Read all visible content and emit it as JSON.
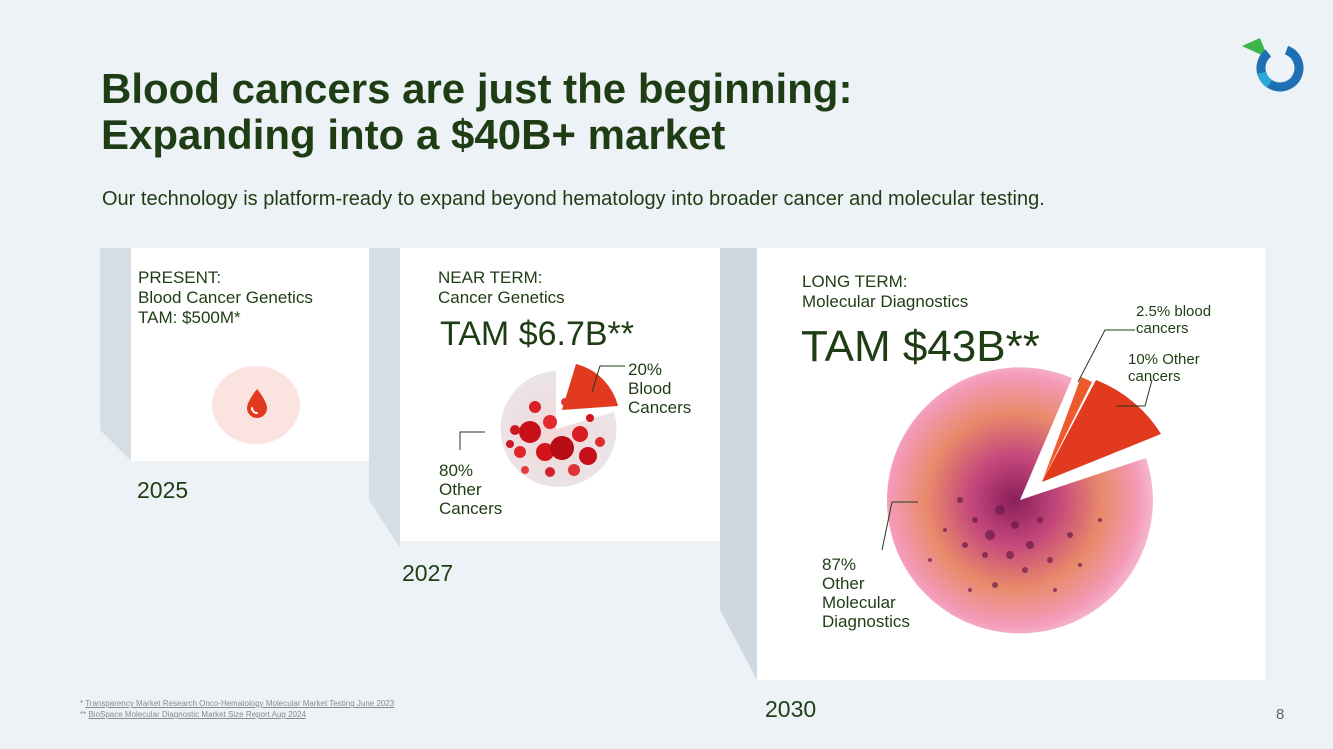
{
  "title_line1": "Blood cancers are just the beginning:",
  "title_line2": "Expanding into a $40B+ market",
  "subtitle": "Our technology is platform-ready to expand beyond hematology into broader cancer and molecular testing.",
  "present": {
    "line1": "PRESENT:",
    "line2": "Blood Cancer Genetics",
    "line3": "TAM: $500M*",
    "year": "2025",
    "icon": "blood-drop-icon"
  },
  "near": {
    "line1": "NEAR TERM:",
    "line2": "Cancer Genetics",
    "tam": "TAM $6.7B**",
    "year": "2027",
    "slice_pct": "20%",
    "slice_label1": "Blood",
    "slice_label2": "Cancers",
    "other_pct": "80%",
    "other_label1": "Other",
    "other_label2": "Cancers"
  },
  "long": {
    "line1": "LONG TERM:",
    "line2": "Molecular Diagnostics",
    "tam": "TAM $43B**",
    "year": "2030",
    "blood_label1": "2.5% blood",
    "blood_label2": "cancers",
    "other_cancer_label1": "10% Other",
    "other_cancer_label2": "cancers",
    "mol_pct": "87%",
    "mol_label1": "Other",
    "mol_label2": "Molecular",
    "mol_label3": "Diagnostics"
  },
  "footnotes": {
    "f1_prefix": "* ",
    "f1_text": "Transparency Market Research Onco-Hematology Molecular Market Testing June 2023",
    "f2_prefix": "** ",
    "f2_text": "BioSpace Molecular Diagnostic Market Size Report Aug 2024"
  },
  "page_number": "8",
  "colors": {
    "title": "#1f3d14",
    "accent_red": "#e23a1e",
    "accent_orange": "#ee5a2b",
    "logo_green": "#3cb54a",
    "logo_blue": "#1f6fb5"
  }
}
